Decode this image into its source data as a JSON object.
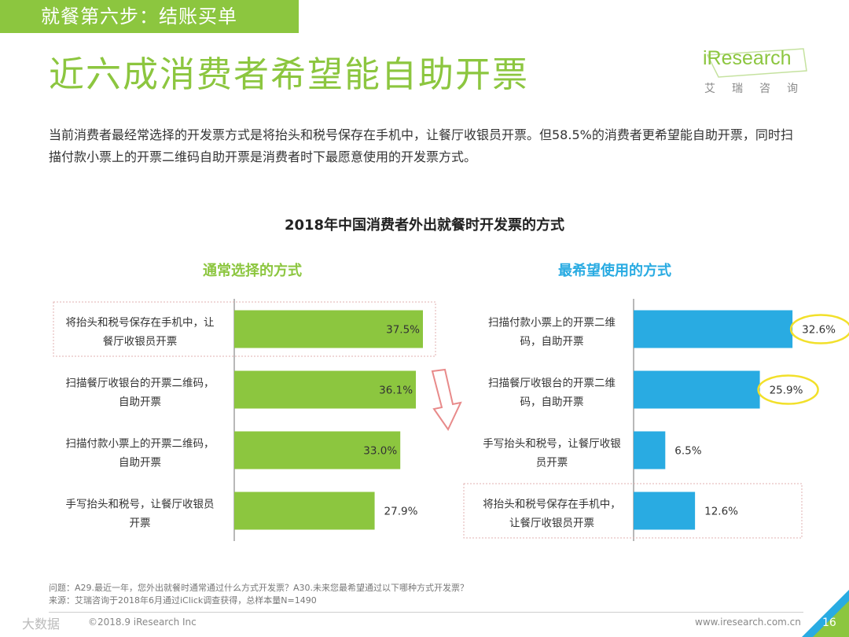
{
  "header": {
    "step_tag": "就餐第六步：结账买单",
    "title": "近六成消费者希望能自助开票"
  },
  "logo": {
    "brand": "iResearch",
    "brand_cn": "艾瑞咨询"
  },
  "summary": "当前消费者最经常选择的开发票方式是将抬头和税号保存在手机中，让餐厅收银员开票。但58.5%的消费者更希望能自助开票，同时扫描付款小票上的开票二维码自助开票是消费者时下最愿意使用的开发票方式。",
  "colors": {
    "green": "#8cc63f",
    "blue": "#29abe2",
    "highlight": "#f2e02a",
    "arrow": "#e88a8a"
  },
  "chart_data": {
    "title": "2018年中国消费者外出就餐时开发票的方式",
    "charts": [
      {
        "type": "bar",
        "orientation": "horizontal",
        "subtitle": "通常选择的方式",
        "color": "#8cc63f",
        "categories": [
          [
            "将抬头和税号保存在手机中，让",
            "餐厅收银员开票"
          ],
          [
            "扫描餐厅收银台的开票二维码，",
            "自助开票"
          ],
          [
            "扫描付款小票上的开票二维码，",
            "自助开票"
          ],
          [
            "手写抬头和税号，让餐厅收银员",
            "开票"
          ]
        ],
        "values": [
          37.5,
          36.1,
          33.0,
          27.9
        ],
        "value_labels": [
          "37.5%",
          "36.1%",
          "33.0%",
          "27.9%"
        ],
        "boxed_index": 0,
        "xlim": [
          0,
          40
        ]
      },
      {
        "type": "bar",
        "orientation": "horizontal",
        "subtitle": "最希望使用的方式",
        "color": "#29abe2",
        "categories": [
          [
            "扫描付款小票上的开票二维",
            "码，自助开票"
          ],
          [
            "扫描餐厅收银台的开票二维",
            "码，自助开票"
          ],
          [
            "手写抬头和税号，让餐厅收银",
            "员开票"
          ],
          [
            "将抬头和税号保存在手机中，",
            "让餐厅收银员开票"
          ]
        ],
        "values": [
          32.6,
          25.9,
          6.5,
          12.6
        ],
        "value_labels": [
          "32.6%",
          "25.9%",
          "6.5%",
          "12.6%"
        ],
        "circled_indices": [
          0,
          1
        ],
        "boxed_index": 3,
        "xlim": [
          0,
          40
        ]
      }
    ]
  },
  "footer": {
    "question": "问题：A29.最近一年，您外出就餐时通常通过什么方式开发票？A30.未来您最希望通过以下哪种方式开发票？",
    "source": "来源：艾瑞咨询于2018年6月通过iClick调查获得，总样本量N=1490",
    "copyright": "©2018.9 iResearch Inc",
    "watermark": "大数据",
    "website": "www.iresearch.com.cn",
    "page_number": "16"
  }
}
